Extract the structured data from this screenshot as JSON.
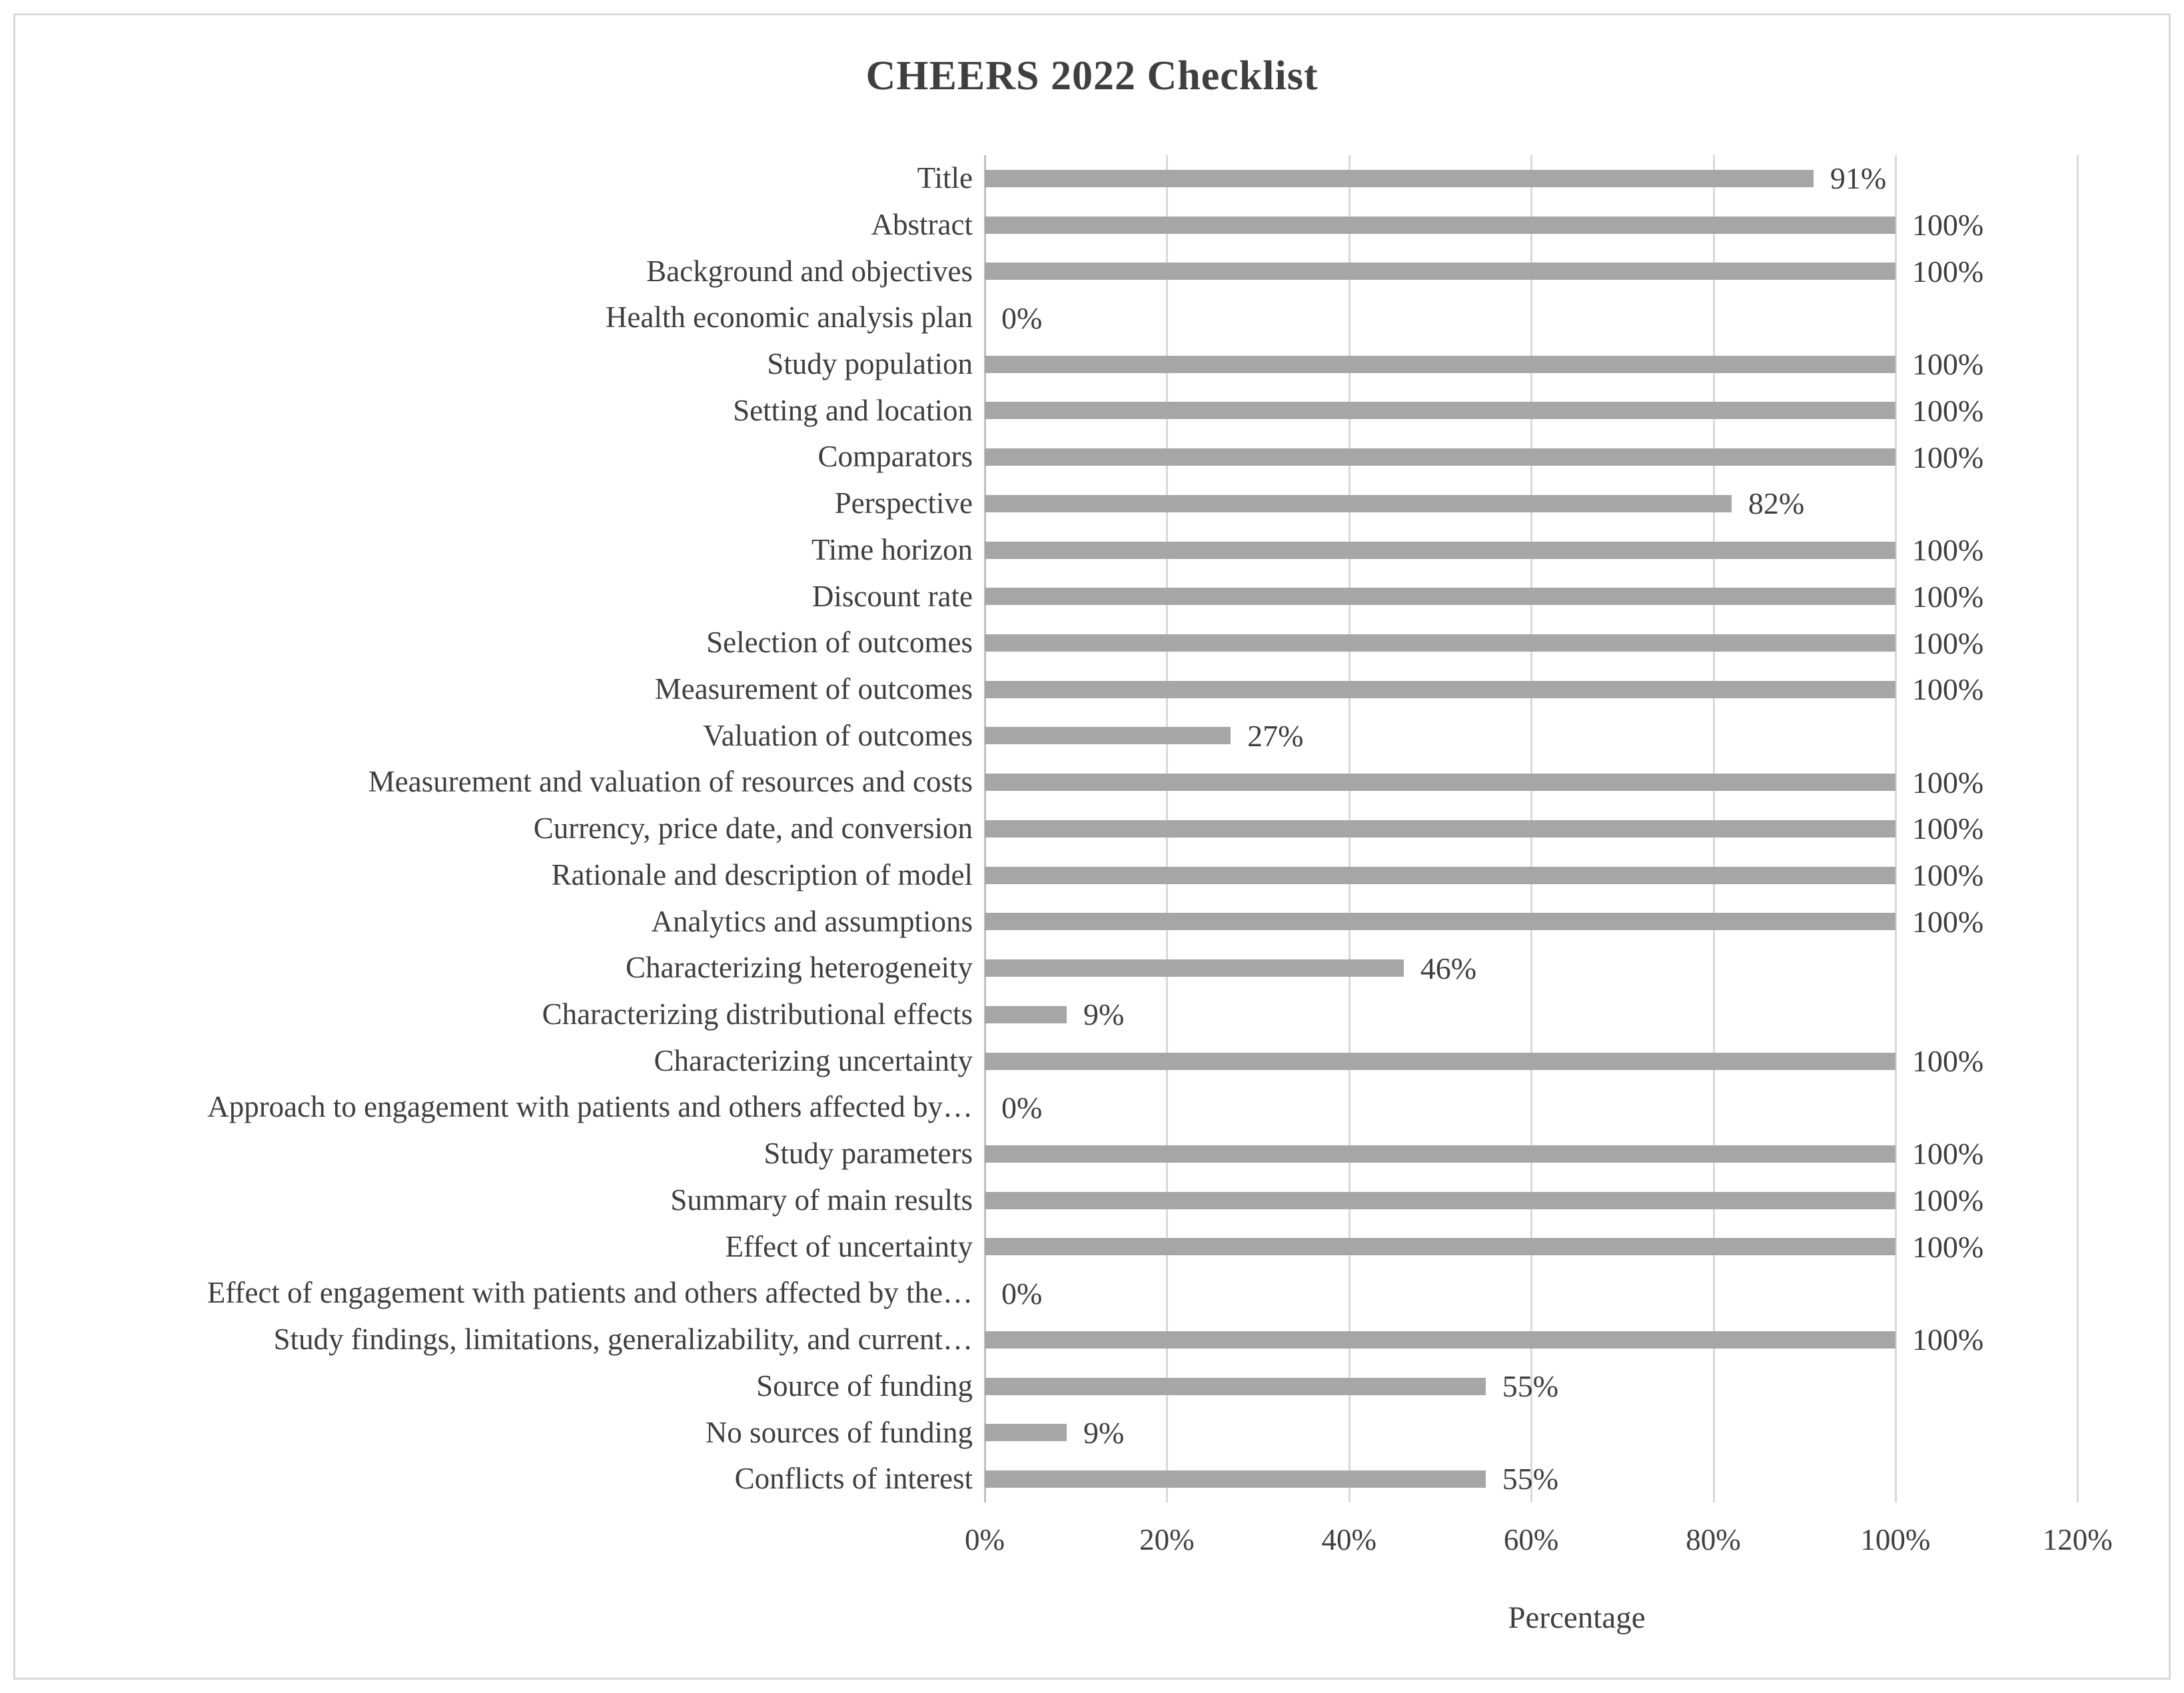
{
  "chart_data": {
    "type": "bar",
    "orientation": "horizontal",
    "title": "CHEERS 2022 Checklist",
    "xlabel": "Percentage",
    "categories": [
      "Title",
      "Abstract",
      "Background and objectives",
      "Health economic analysis plan",
      "Study population",
      "Setting and location",
      "Comparators",
      "Perspective",
      "Time horizon",
      "Discount rate",
      "Selection of outcomes",
      "Measurement of outcomes",
      "Valuation of outcomes",
      "Measurement and valuation of resources and costs",
      "Currency, price date, and conversion",
      "Rationale and description of model",
      "Analytics and assumptions",
      "Characterizing heterogeneity",
      "Characterizing distributional effects",
      "Characterizing uncertainty",
      "Approach to engagement with patients and others affected by…",
      "Study parameters",
      "Summary of main results",
      "Effect of uncertainty",
      "Effect of engagement with patients and others affected by the…",
      "Study findings, limitations, generalizability, and current…",
      "Source of funding",
      "No sources of funding",
      "Conflicts of interest"
    ],
    "values": [
      91,
      100,
      100,
      0,
      100,
      100,
      100,
      82,
      100,
      100,
      100,
      100,
      27,
      100,
      100,
      100,
      100,
      46,
      9,
      100,
      0,
      100,
      100,
      100,
      0,
      100,
      55,
      9,
      55
    ],
    "value_labels": [
      "91%",
      "100%",
      "100%",
      "0%",
      "100%",
      "100%",
      "100%",
      "82%",
      "100%",
      "100%",
      "100%",
      "100%",
      "27%",
      "100%",
      "100%",
      "100%",
      "100%",
      "46%",
      "9%",
      "100%",
      "0%",
      "100%",
      "100%",
      "100%",
      "0%",
      "100%",
      "55%",
      "9%",
      "55%"
    ],
    "tick_values": [
      0,
      20,
      40,
      60,
      80,
      100,
      120
    ],
    "x_ticks": [
      "0%",
      "20%",
      "40%",
      "60%",
      "80%",
      "100%",
      "120%"
    ],
    "xlim": [
      0,
      130
    ],
    "grid": true,
    "legend": "none",
    "colors": {
      "bar": "#a6a6a6",
      "gridline": "#d9d9d9",
      "axis_line": "#bfbfbf",
      "text": "#3f3f3f",
      "frame_border": "#d9d9d9",
      "background": "#ffffff"
    }
  }
}
